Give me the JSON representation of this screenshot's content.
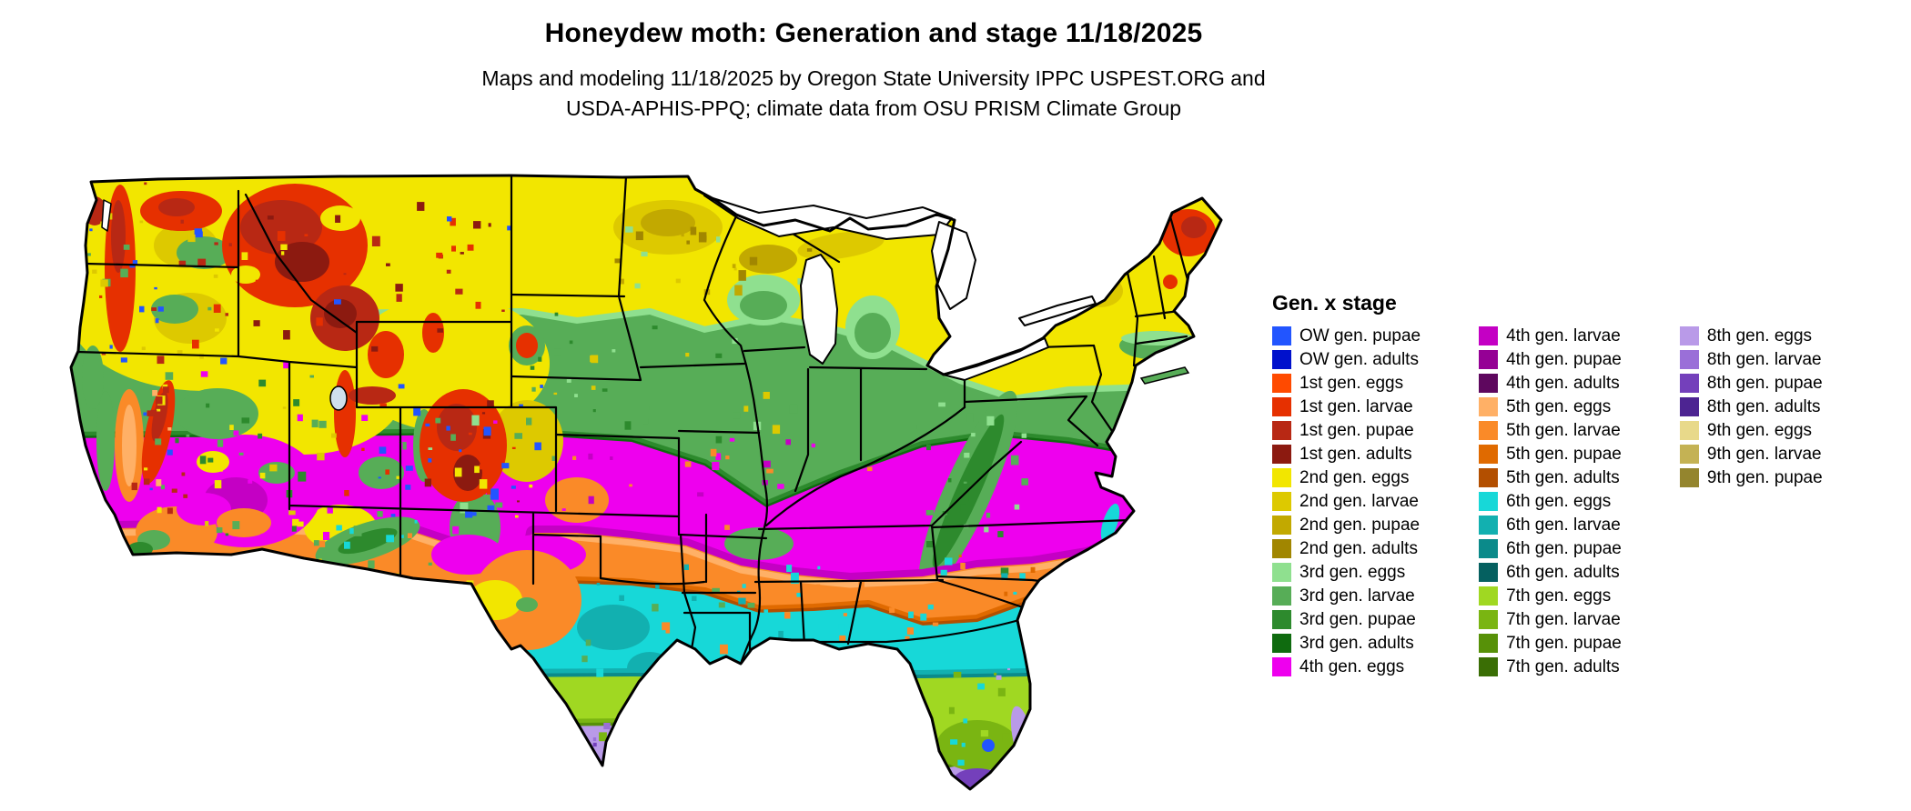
{
  "header": {
    "title": "Honeydew moth: Generation and stage 11/18/2025",
    "subtitle_line1": "Maps and modeling 11/18/2025 by Oregon State University IPPC USPEST.ORG and",
    "subtitle_line2": "USDA-APHIS-PPQ; climate data from OSU PRISM Climate Group"
  },
  "legend": {
    "title": "Gen. x stage",
    "columns": [
      {
        "items": [
          {
            "label": "OW gen. pupae",
            "color": "#2255ff"
          },
          {
            "label": "OW gen. adults",
            "color": "#0011cc"
          },
          {
            "label": "1st gen. eggs",
            "color": "#ff4a00"
          },
          {
            "label": "1st gen. larvae",
            "color": "#e63000"
          },
          {
            "label": "1st gen. pupae",
            "color": "#b82814"
          },
          {
            "label": "1st gen. adults",
            "color": "#8c1a10"
          },
          {
            "label": "2nd gen. eggs",
            "color": "#f2e600"
          },
          {
            "label": "2nd gen. larvae",
            "color": "#ddc900"
          },
          {
            "label": "2nd gen. pupae",
            "color": "#c2a900"
          },
          {
            "label": "2nd gen. adults",
            "color": "#a18600"
          },
          {
            "label": "3rd gen. eggs",
            "color": "#8fe08f"
          },
          {
            "label": "3rd gen. larvae",
            "color": "#57ad57"
          },
          {
            "label": "3rd gen. pupae",
            "color": "#2d8a2d"
          },
          {
            "label": "3rd gen. adults",
            "color": "#0f6b0f"
          },
          {
            "label": "4th gen. eggs",
            "color": "#ee00ee"
          }
        ]
      },
      {
        "items": [
          {
            "label": "4th gen. larvae",
            "color": "#c400c4"
          },
          {
            "label": "4th gen. pupae",
            "color": "#950095"
          },
          {
            "label": "4th gen. adults",
            "color": "#5e075e"
          },
          {
            "label": "5th gen. eggs",
            "color": "#ffb066"
          },
          {
            "label": "5th gen. larvae",
            "color": "#fa8a28"
          },
          {
            "label": "5th gen. pupae",
            "color": "#e06a00"
          },
          {
            "label": "5th gen. adults",
            "color": "#b34f00"
          },
          {
            "label": "6th gen. eggs",
            "color": "#17d8d8"
          },
          {
            "label": "6th gen. larvae",
            "color": "#12b0b0"
          },
          {
            "label": "6th gen. pupae",
            "color": "#0b8a8a"
          },
          {
            "label": "6th gen. adults",
            "color": "#056060"
          },
          {
            "label": "7th gen. eggs",
            "color": "#a0d822"
          },
          {
            "label": "7th gen. larvae",
            "color": "#7ab512"
          },
          {
            "label": "7th gen. pupae",
            "color": "#579108"
          },
          {
            "label": "7th gen. adults",
            "color": "#3a6e05"
          }
        ]
      },
      {
        "items": [
          {
            "label": "8th gen. eggs",
            "color": "#b99ae8"
          },
          {
            "label": "8th gen. larvae",
            "color": "#9a6fd8"
          },
          {
            "label": "8th gen. pupae",
            "color": "#7440bb"
          },
          {
            "label": "8th gen. adults",
            "color": "#4d2492"
          },
          {
            "label": "9th gen. eggs",
            "color": "#e8d98a"
          },
          {
            "label": "9th gen. larvae",
            "color": "#c4b254"
          },
          {
            "label": "9th gen. pupae",
            "color": "#94852e"
          }
        ]
      }
    ]
  }
}
